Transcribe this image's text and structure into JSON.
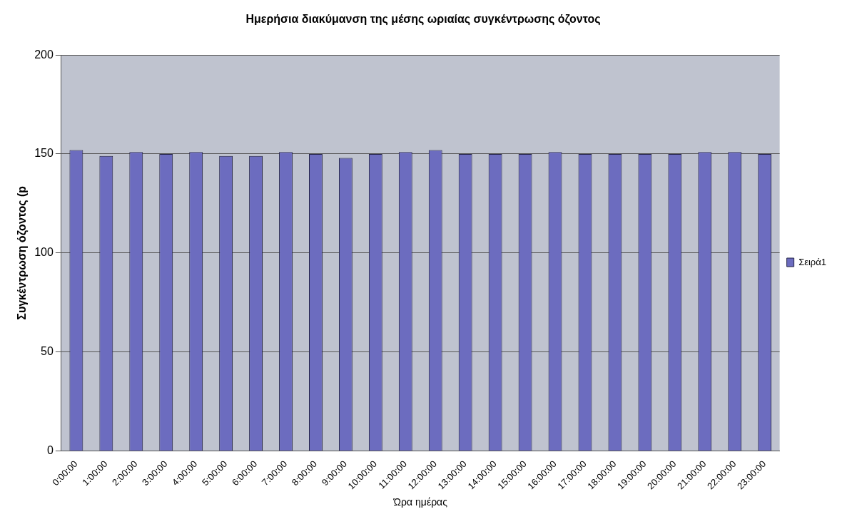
{
  "chart_data": {
    "type": "bar",
    "title": "Ημερήσια διακύμανση της μέσης ωριαίας συγκέντρωσης όζοντος",
    "xlabel": "Ώρα ημέρας",
    "ylabel": "Συγκέντρωση όζοντος (p",
    "categories": [
      "0:00:00",
      "1:00:00",
      "2:00:00",
      "3:00:00",
      "4:00:00",
      "5:00:00",
      "6:00:00",
      "7:00:00",
      "8:00:00",
      "9:00:00",
      "10:00:00",
      "11:00:00",
      "12:00:00",
      "13:00:00",
      "14:00:00",
      "15:00:00",
      "16:00:00",
      "17:00:00",
      "18:00:00",
      "19:00:00",
      "20:00:00",
      "21:00:00",
      "22:00:00",
      "23:00:00"
    ],
    "series": [
      {
        "name": "Σειρά1",
        "color": "#6c6cbf",
        "values": [
          152,
          149,
          151,
          150,
          151,
          149,
          149,
          151,
          150,
          148,
          150,
          151,
          152,
          150,
          150,
          150,
          151,
          150,
          150,
          150,
          150,
          151,
          151,
          150
        ]
      }
    ],
    "ylim": [
      0,
      200
    ],
    "yticks": [
      0,
      50,
      100,
      150,
      200
    ],
    "grid": "y",
    "legend": "right"
  }
}
